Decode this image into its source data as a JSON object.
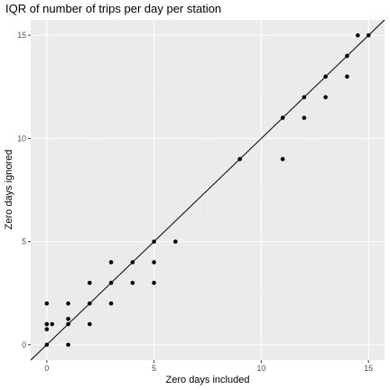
{
  "chart_data": {
    "type": "scatter",
    "title": "IQR of number of trips per day per station",
    "xlabel": "Zero days included",
    "ylabel": "Zero days ignored",
    "xlim": [
      -0.75,
      15.75
    ],
    "ylim": [
      -0.75,
      15.75
    ],
    "x_ticks": [
      0,
      5,
      10,
      15
    ],
    "y_ticks": [
      0,
      5,
      10,
      15
    ],
    "x_tick_labels": [
      "0",
      "5",
      "10",
      "15"
    ],
    "y_tick_labels": [
      "0",
      "5",
      "10",
      "15"
    ],
    "reference_line": {
      "intercept": 0,
      "slope": 1
    },
    "grid": true,
    "legend": "none",
    "colors": {
      "panel_background": "#ebebeb",
      "grid_major": "#ffffff",
      "grid_minor": "#f2f2f2",
      "point": "#000000",
      "line": "#000000"
    },
    "points": [
      {
        "x": 0,
        "y": 0
      },
      {
        "x": 0,
        "y": 0.75
      },
      {
        "x": 0,
        "y": 1
      },
      {
        "x": 0,
        "y": 2
      },
      {
        "x": 0.25,
        "y": 1
      },
      {
        "x": 1,
        "y": 0
      },
      {
        "x": 1,
        "y": 1
      },
      {
        "x": 1,
        "y": 1.25
      },
      {
        "x": 1,
        "y": 2
      },
      {
        "x": 2,
        "y": 1
      },
      {
        "x": 2,
        "y": 2
      },
      {
        "x": 2,
        "y": 3
      },
      {
        "x": 3,
        "y": 2
      },
      {
        "x": 3,
        "y": 3
      },
      {
        "x": 3,
        "y": 4
      },
      {
        "x": 4,
        "y": 3
      },
      {
        "x": 4,
        "y": 4
      },
      {
        "x": 5,
        "y": 3
      },
      {
        "x": 5,
        "y": 4
      },
      {
        "x": 5,
        "y": 5
      },
      {
        "x": 6,
        "y": 5
      },
      {
        "x": 9,
        "y": 9
      },
      {
        "x": 11,
        "y": 9
      },
      {
        "x": 11,
        "y": 11
      },
      {
        "x": 12,
        "y": 11
      },
      {
        "x": 12,
        "y": 12
      },
      {
        "x": 13,
        "y": 12
      },
      {
        "x": 13,
        "y": 13
      },
      {
        "x": 14,
        "y": 13
      },
      {
        "x": 14,
        "y": 14
      },
      {
        "x": 14.5,
        "y": 15
      },
      {
        "x": 15,
        "y": 15
      }
    ]
  }
}
